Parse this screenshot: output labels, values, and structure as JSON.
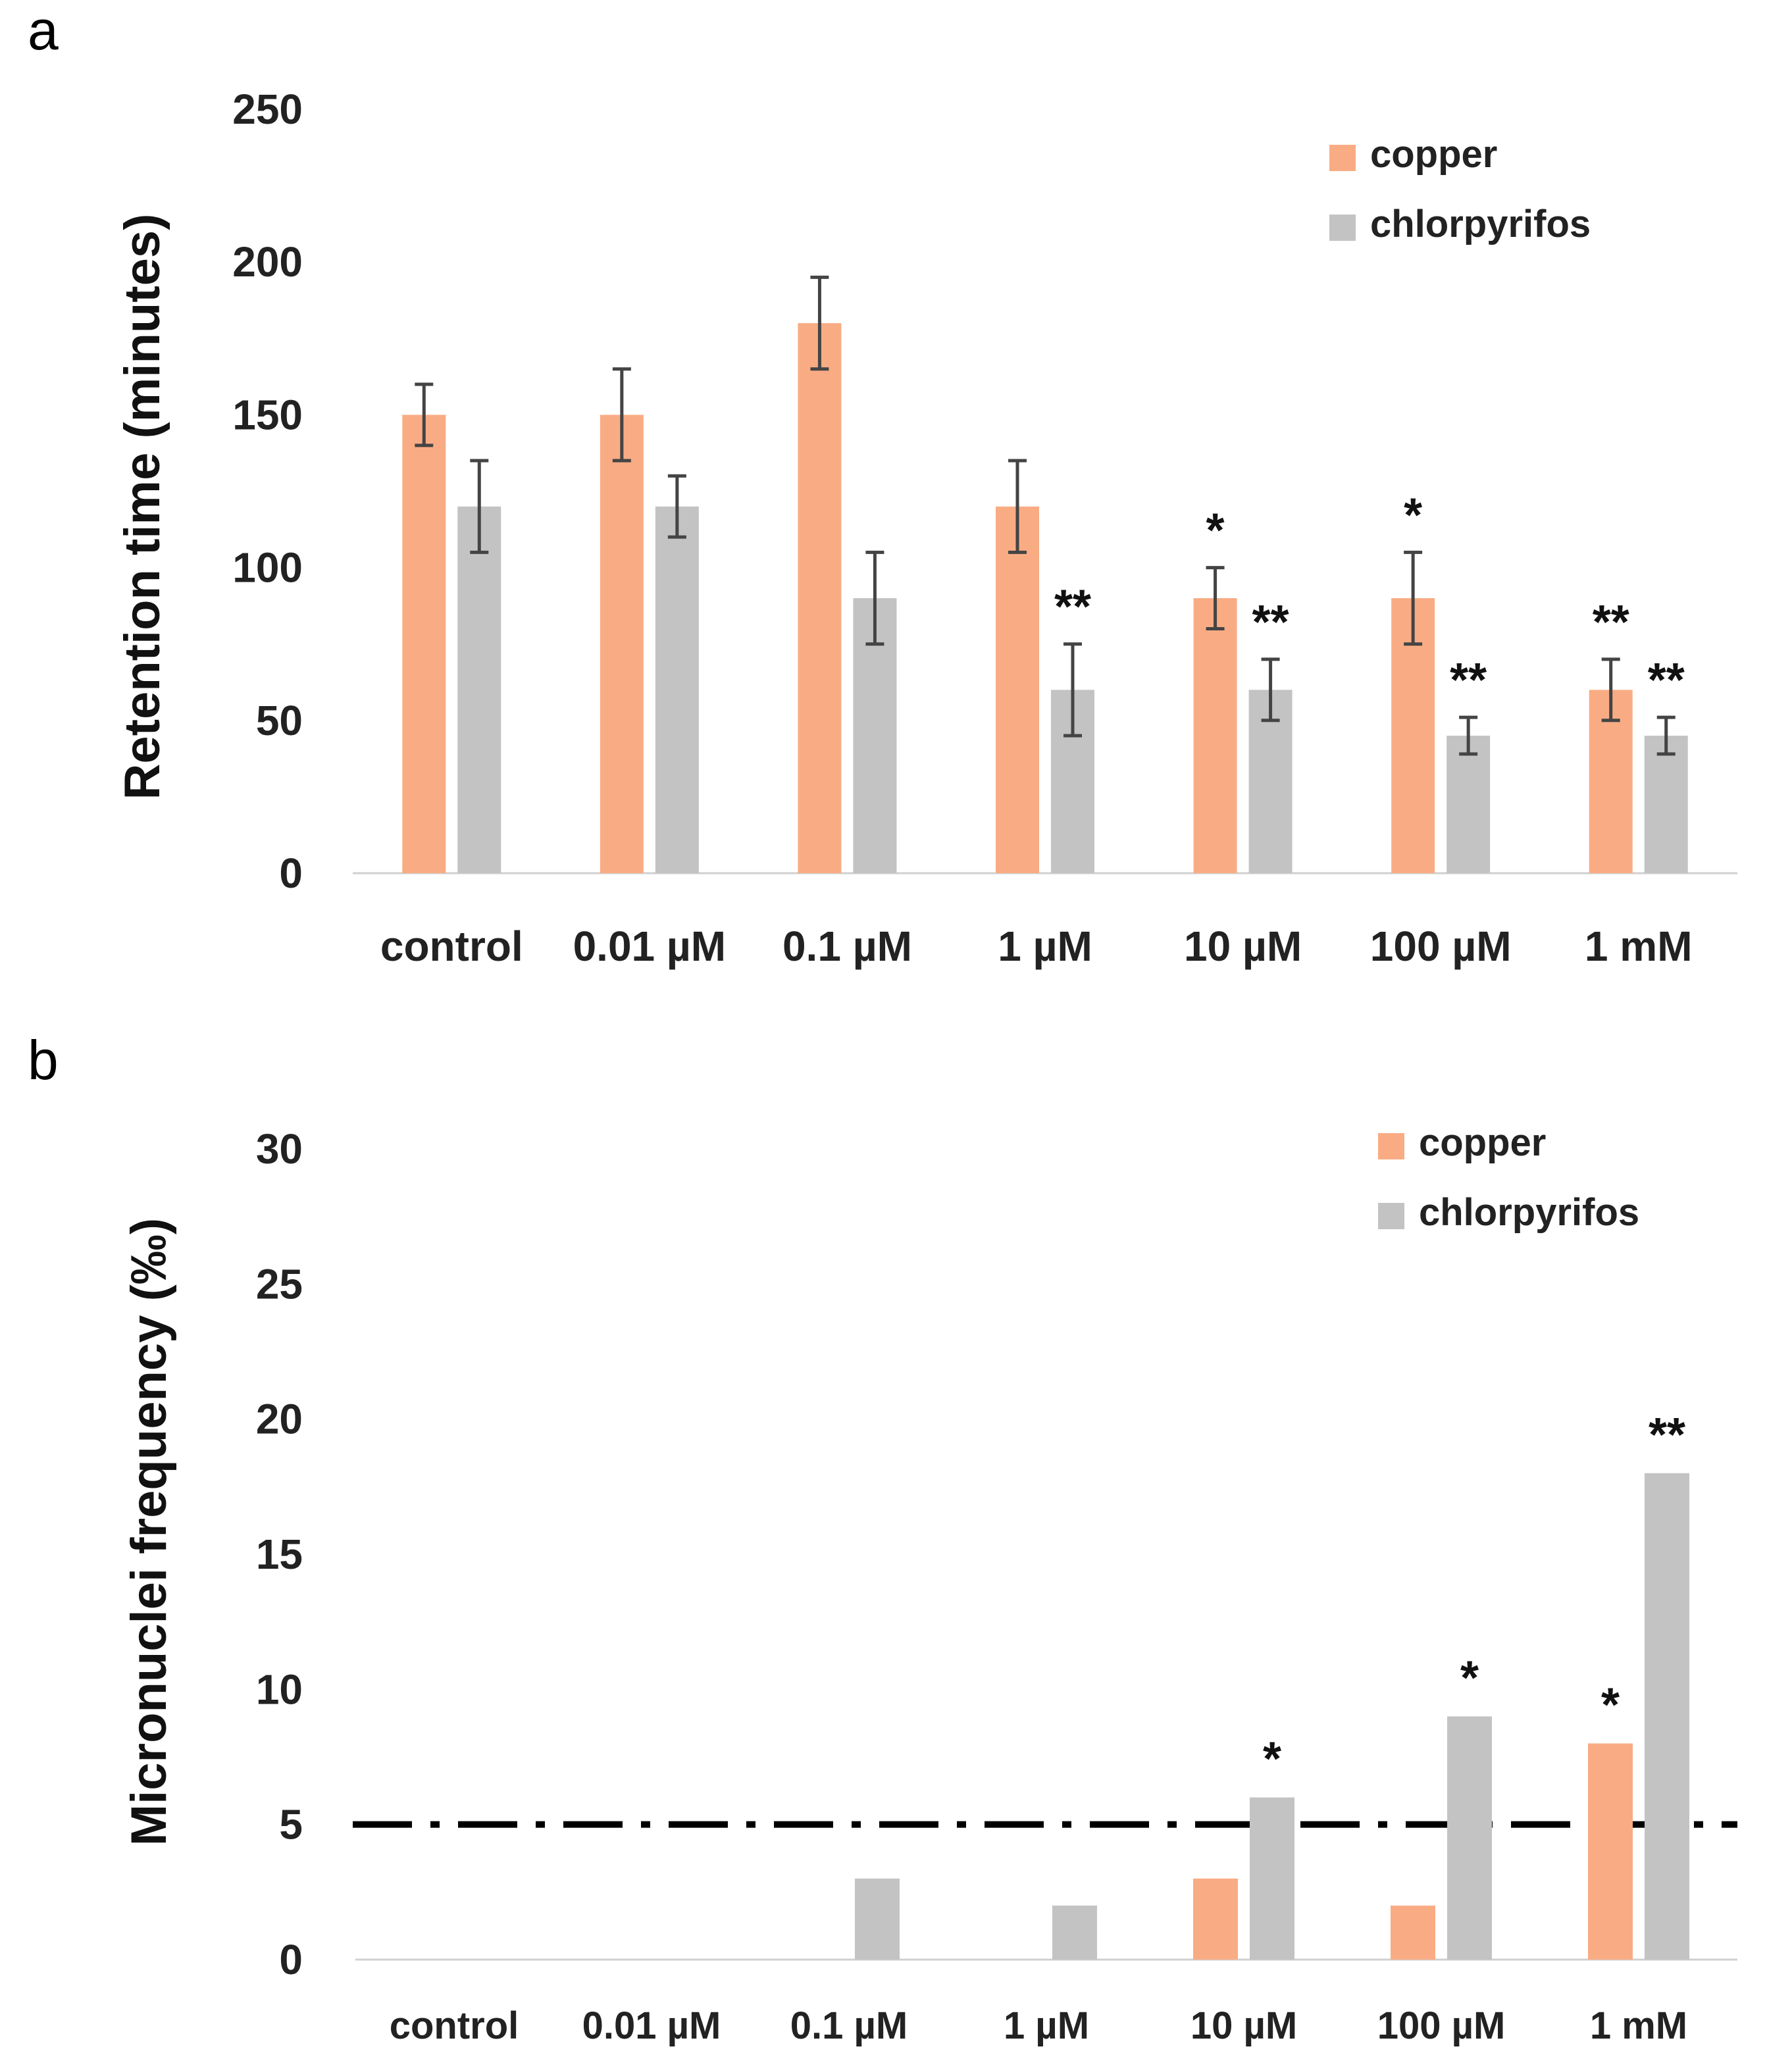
{
  "colors": {
    "copper": "#F9AC84",
    "chlorpyrifos": "#C3C3C3",
    "axis": "#d0d0d0",
    "errorbar": "#444444",
    "threshold": "#000000"
  },
  "chart_data": [
    {
      "panel": "a",
      "type": "bar",
      "ylabel": "Retention time (minutes)",
      "ylim": [
        0,
        250
      ],
      "yticks": [
        0,
        50,
        100,
        150,
        200,
        250
      ],
      "categories": [
        "control",
        "0.01 µM",
        "0.1 µM",
        "1 µM",
        "10 µM",
        "100 µM",
        "1 mM"
      ],
      "series": [
        {
          "name": "copper",
          "values": [
            150,
            150,
            180,
            120,
            90,
            90,
            60
          ],
          "errors": [
            10,
            15,
            15,
            15,
            10,
            15,
            10
          ],
          "significance": [
            "",
            "",
            "",
            "",
            "*",
            "*",
            "**"
          ]
        },
        {
          "name": "chlorpyrifos",
          "values": [
            120,
            120,
            90,
            60,
            60,
            45,
            45
          ],
          "errors": [
            15,
            10,
            15,
            15,
            10,
            6,
            6
          ],
          "significance": [
            "",
            "",
            "",
            "**",
            "**",
            "**",
            "**"
          ]
        }
      ],
      "legend_position": "top-right"
    },
    {
      "panel": "b",
      "type": "bar",
      "ylabel": "Micronuclei frequency (‰)",
      "ylim": [
        0,
        30
      ],
      "yticks": [
        0,
        5,
        10,
        15,
        20,
        25,
        30
      ],
      "categories": [
        "control",
        "0.01 µM",
        "0.1 µM",
        "1 µM",
        "10 µM",
        "100 µM",
        "1 mM"
      ],
      "series": [
        {
          "name": "copper",
          "values": [
            0,
            0,
            0,
            0,
            3,
            2,
            8
          ],
          "significance": [
            "",
            "",
            "",
            "",
            "",
            "",
            "*"
          ]
        },
        {
          "name": "chlorpyrifos",
          "values": [
            0,
            0,
            3,
            2,
            6,
            9,
            18
          ],
          "significance": [
            "",
            "",
            "",
            "",
            "*",
            "*",
            "**"
          ]
        }
      ],
      "threshold_line": 5,
      "legend_position": "top-right"
    }
  ]
}
